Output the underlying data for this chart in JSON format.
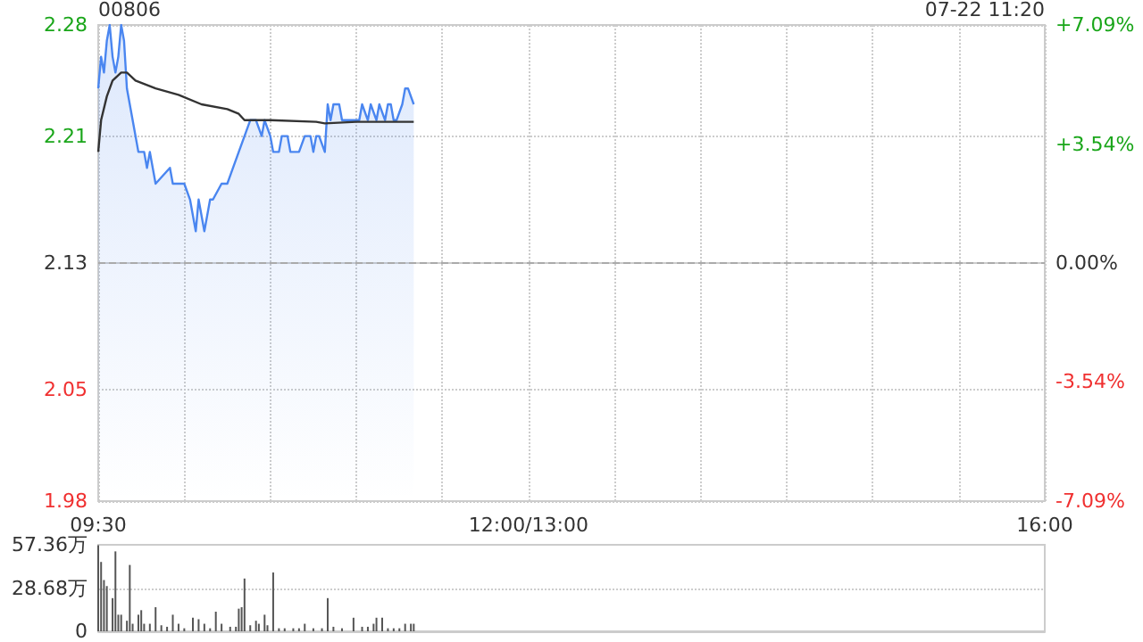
{
  "chart_data": [
    {
      "type": "line",
      "title": "00806",
      "annotations": [
        "07-22 11:20"
      ],
      "categories": [
        "09:30",
        null,
        null,
        null,
        null,
        null,
        null,
        null,
        null,
        null,
        null,
        null,
        null,
        null,
        null,
        null,
        null,
        null,
        null,
        null,
        null,
        null,
        null,
        null,
        null,
        null,
        null,
        null,
        null,
        null,
        null,
        null,
        null,
        null,
        null,
        null,
        null,
        null,
        null,
        null,
        null,
        null,
        null,
        null,
        null,
        null,
        null,
        null,
        null,
        null,
        null,
        null,
        null,
        null,
        null,
        null,
        null,
        null,
        null,
        null,
        null,
        null,
        null,
        null,
        null,
        null,
        null,
        null,
        null,
        null,
        null,
        null,
        null,
        null,
        null,
        null,
        null,
        null,
        null,
        null,
        null,
        null,
        null,
        null,
        null,
        null,
        null,
        null,
        null,
        null,
        null,
        null,
        null,
        null,
        null,
        null,
        null,
        null,
        null,
        null,
        null,
        null,
        null,
        null,
        null,
        null,
        null,
        null,
        null,
        null,
        null,
        null,
        null,
        null,
        null,
        null,
        null,
        null,
        null,
        null,
        null,
        null,
        null,
        null,
        null,
        null,
        null,
        null,
        null,
        null,
        null,
        null,
        null,
        null,
        null,
        null,
        null,
        null,
        null,
        null,
        null,
        null,
        null,
        null,
        null,
        null,
        null,
        null,
        null,
        null,
        "12:00/13:00",
        null,
        null,
        null,
        null,
        null,
        null,
        null,
        null,
        null,
        null,
        null,
        null,
        null,
        null,
        null,
        null,
        null,
        null,
        null,
        null,
        null,
        null,
        null,
        null,
        null,
        null,
        null,
        null,
        null,
        null,
        null,
        null,
        null,
        null,
        null,
        null,
        null,
        null,
        null,
        null,
        null,
        null,
        null,
        null,
        null,
        null,
        null,
        null,
        null,
        null,
        null,
        null,
        null,
        null,
        null,
        null,
        null,
        null,
        null,
        null,
        null,
        null,
        null,
        null,
        null,
        null,
        null,
        null,
        null,
        null,
        null,
        null,
        null,
        null,
        null,
        null,
        null,
        null,
        null,
        null,
        null,
        null,
        null,
        null,
        null,
        null,
        null,
        null,
        null,
        null,
        null,
        null,
        null,
        null,
        null,
        null,
        null,
        null,
        null,
        null,
        null,
        null,
        null,
        null,
        null,
        null,
        null,
        null,
        null,
        null,
        null,
        null,
        null,
        null,
        null,
        null,
        null,
        null,
        null,
        null,
        null,
        null,
        null,
        null,
        null,
        null,
        null,
        null,
        null,
        null,
        null,
        null,
        null,
        null,
        null,
        null,
        null,
        null,
        null,
        null,
        null,
        null,
        null,
        null,
        null,
        null,
        null,
        null,
        null,
        null,
        null,
        null,
        null,
        null,
        null,
        null,
        null,
        null,
        null,
        null,
        null,
        null,
        null,
        null,
        null,
        null,
        null,
        null,
        null,
        null,
        null,
        null,
        null,
        null,
        null,
        null,
        null,
        null,
        null,
        "16:00"
      ],
      "ylim": [
        1.98,
        2.28
      ],
      "yticks": [
        1.98,
        2.05,
        2.13,
        2.21,
        2.28
      ],
      "y2lim": [
        -7.09,
        7.09
      ],
      "y2ticks": [
        {
          "value": -7.09,
          "label": "-7.09%"
        },
        {
          "value": -3.54,
          "label": "-3.54%"
        },
        {
          "value": 0,
          "label": "0.00%"
        },
        {
          "value": 3.54,
          "label": "+3.54%"
        },
        {
          "value": 7.09,
          "label": "+7.09%"
        }
      ],
      "grid": true,
      "ref_lines": [
        {
          "axis": "y",
          "value": 2.13,
          "color": "#aaaaaa",
          "line_style": "dashed"
        }
      ],
      "series": [
        {
          "type": "area",
          "color": "#4a86f0",
          "values": [
            2.24,
            2.26,
            2.25,
            2.27,
            2.28,
            2.26,
            2.25,
            2.26,
            2.28,
            2.27,
            2.24,
            null,
            2.22,
            null,
            2.2,
            null,
            2.2,
            2.19,
            2.2,
            2.19,
            2.18,
            null,
            null,
            null,
            null,
            2.19,
            2.18,
            null,
            null,
            null,
            2.18,
            null,
            2.17,
            null,
            2.15,
            2.17,
            null,
            2.15,
            null,
            2.17,
            2.17,
            null,
            null,
            2.18,
            null,
            2.18,
            null,
            2.19,
            null,
            2.2,
            null,
            2.21,
            null,
            2.22,
            null,
            2.22,
            null,
            2.21,
            2.22,
            null,
            2.21,
            2.2,
            null,
            2.2,
            2.21,
            null,
            2.21,
            2.2,
            null,
            null,
            2.2,
            null,
            2.21,
            null,
            2.21,
            2.2,
            2.21,
            2.21,
            null,
            2.2,
            2.23,
            2.22,
            2.23,
            null,
            2.23,
            2.22,
            null,
            null,
            null,
            null,
            null,
            2.22,
            2.23,
            null,
            2.22,
            2.23,
            null,
            2.22,
            2.23,
            null,
            2.22,
            2.23,
            2.23,
            2.22,
            2.22,
            null,
            2.23,
            2.24,
            2.24,
            null,
            2.23,
            null,
            null,
            null,
            null,
            null,
            null,
            null,
            null,
            null,
            null,
            null,
            null,
            null,
            null,
            null,
            null,
            null,
            null,
            null,
            null,
            null,
            null,
            null,
            null,
            null,
            null,
            null,
            null,
            null,
            null,
            null,
            null,
            null,
            null,
            null,
            null,
            null,
            null,
            null,
            null,
            null,
            null,
            null,
            null,
            null,
            null,
            null,
            null,
            null,
            null,
            null,
            null,
            null,
            null,
            null,
            null,
            null,
            null,
            null,
            null,
            null,
            null,
            null,
            null,
            null,
            null,
            null,
            null,
            null,
            null,
            null,
            null,
            null,
            null,
            null,
            null,
            null,
            null,
            null,
            null,
            null,
            null,
            null,
            null,
            null,
            null,
            null,
            null,
            null,
            null,
            null,
            null,
            null,
            null,
            null,
            null,
            null,
            null,
            null,
            null,
            null,
            null,
            null,
            null,
            null,
            null,
            null,
            null,
            null,
            null,
            null,
            null,
            null,
            null,
            null,
            null,
            null,
            null,
            null,
            null,
            null,
            null,
            null,
            null,
            null,
            null,
            null,
            null,
            null,
            null,
            null,
            null,
            null,
            null,
            null,
            null,
            null,
            null,
            null,
            null,
            null,
            null,
            null,
            null,
            null,
            null,
            null,
            null,
            null,
            null,
            null,
            null,
            null,
            null,
            null,
            null,
            null,
            null,
            null,
            null,
            null,
            null,
            null,
            null,
            null,
            null,
            null,
            null,
            null,
            null,
            null,
            null,
            null,
            null,
            null,
            null,
            null,
            null,
            null,
            null,
            null,
            null,
            null,
            null,
            null,
            null,
            null,
            null,
            null,
            null,
            null,
            null,
            null,
            null,
            null,
            null,
            null,
            null,
            null,
            null,
            null,
            null,
            null,
            null,
            null,
            null,
            null,
            null,
            null,
            null,
            null,
            null,
            null,
            null,
            null,
            null,
            null,
            null,
            null,
            null
          ]
        },
        {
          "color": "#333333",
          "values": [
            2.2,
            2.22,
            null,
            2.235,
            null,
            2.245,
            null,
            null,
            2.25,
            null,
            2.25,
            null,
            null,
            2.245,
            null,
            null,
            null,
            null,
            null,
            null,
            2.24,
            null,
            null,
            null,
            null,
            null,
            null,
            null,
            2.236,
            null,
            null,
            null,
            null,
            null,
            null,
            null,
            2.23,
            null,
            null,
            null,
            null,
            null,
            null,
            null,
            null,
            2.227,
            null,
            null,
            null,
            2.224,
            null,
            2.22,
            null,
            null,
            null,
            null,
            null,
            null,
            null,
            null,
            2.22,
            null,
            null,
            null,
            null,
            null,
            null,
            null,
            null,
            null,
            null,
            null,
            null,
            null,
            null,
            null,
            2.219,
            null,
            null,
            2.218,
            null,
            null,
            null,
            null,
            null,
            null,
            null,
            null,
            null,
            null,
            2.219,
            null,
            null,
            null,
            null,
            null,
            null,
            null,
            null,
            null,
            null,
            null,
            null,
            null,
            null,
            null,
            null,
            null,
            null,
            null,
            2.219,
            null,
            null,
            null,
            null,
            null,
            null,
            null,
            null,
            null,
            null,
            null,
            null,
            null,
            null,
            null,
            null,
            null,
            null,
            null,
            null,
            null,
            null,
            null,
            null,
            null,
            null,
            null,
            null,
            null,
            null,
            null,
            null,
            null,
            null,
            null,
            null,
            null,
            null,
            null,
            null,
            null,
            null,
            null,
            null,
            null,
            null,
            null,
            null,
            null,
            null,
            null,
            null,
            null,
            null,
            null,
            null,
            null,
            null,
            null,
            null,
            null,
            null,
            null,
            null,
            null,
            null,
            null,
            null,
            null,
            null,
            null,
            null,
            null,
            null,
            null,
            null,
            null,
            null,
            null,
            null,
            null,
            null,
            null,
            null,
            null,
            null,
            null,
            null,
            null,
            null,
            null,
            null,
            null,
            null,
            null,
            null,
            null,
            null,
            null,
            null,
            null,
            null,
            null,
            null,
            null,
            null,
            null,
            null,
            null,
            null,
            null,
            null,
            null,
            null,
            null,
            null,
            null,
            null,
            null,
            null,
            null,
            null,
            null,
            null,
            null,
            null,
            null,
            null,
            null,
            null,
            null,
            null,
            null,
            null,
            null,
            null,
            null,
            null,
            null,
            null,
            null,
            null,
            null,
            null,
            null,
            null,
            null,
            null,
            null,
            null,
            null,
            null,
            null,
            null,
            null,
            null,
            null,
            null,
            null,
            null,
            null,
            null,
            null,
            null,
            null,
            null,
            null,
            null,
            null,
            null,
            null,
            null,
            null,
            null,
            null,
            null,
            null,
            null,
            null,
            null,
            null,
            null,
            null,
            null,
            null,
            null,
            null,
            null,
            null,
            null,
            null,
            null,
            null,
            null,
            null,
            null,
            null,
            null,
            null,
            null,
            null,
            null,
            null,
            null,
            null,
            null,
            null,
            null,
            null,
            null,
            null,
            null,
            null,
            null,
            null,
            null,
            null,
            null,
            null,
            null
          ]
        }
      ]
    },
    {
      "type": "bar",
      "color": "#555555",
      "ylim": [
        0,
        57.36
      ],
      "yticks": [
        0,
        {
          "value": 28.68,
          "label": "28.68万"
        },
        {
          "value": 57.36,
          "label": "57.36万"
        }
      ],
      "grid": "y",
      "tick_labels": "y",
      "categories": [
        null,
        null,
        null,
        null,
        null,
        null,
        null,
        null,
        null,
        null,
        null,
        null,
        null,
        null,
        null,
        null,
        null,
        null,
        null,
        null,
        null,
        null,
        null,
        null,
        null,
        null,
        null,
        null,
        null,
        null,
        null,
        null,
        null,
        null,
        null,
        null,
        null,
        null,
        null,
        null,
        null,
        null,
        null,
        null,
        null,
        null,
        null,
        null,
        null,
        null,
        null,
        null,
        null,
        null,
        null,
        null,
        null,
        null,
        null,
        null,
        null,
        null,
        null,
        null,
        null,
        null,
        null,
        null,
        null,
        null,
        null,
        null,
        null,
        null,
        null,
        null,
        null,
        null,
        null,
        null,
        null,
        null,
        null,
        null,
        null,
        null,
        null,
        null,
        null,
        null,
        null,
        null,
        null,
        null,
        null,
        null,
        null,
        null,
        null,
        null,
        null,
        null,
        null,
        null,
        null,
        null,
        null,
        null,
        null,
        null,
        null,
        null,
        null,
        null,
        null,
        null,
        null,
        null,
        null,
        null,
        null,
        null,
        null,
        null,
        null,
        null,
        null,
        null,
        null,
        null,
        null,
        null,
        null,
        null,
        null,
        null,
        null,
        null,
        null,
        null,
        null,
        null,
        null,
        null,
        null,
        null,
        null,
        null,
        null,
        null,
        null,
        null,
        null,
        null,
        null,
        null,
        null,
        null,
        null,
        null,
        null,
        null,
        null,
        null,
        null,
        null,
        null,
        null,
        null,
        null,
        null,
        null,
        null,
        null,
        null,
        null,
        null,
        null,
        null,
        null,
        null,
        null,
        null,
        null,
        null,
        null,
        null,
        null,
        null,
        null,
        null,
        null,
        null,
        null,
        null,
        null,
        null,
        null,
        null,
        null,
        null,
        null,
        null,
        null,
        null,
        null,
        null,
        null,
        null,
        null,
        null,
        null,
        null,
        null,
        null,
        null,
        null,
        null,
        null,
        null,
        null,
        null,
        null,
        null,
        null,
        null,
        null,
        null,
        null,
        null,
        null,
        null,
        null,
        null,
        null,
        null,
        null,
        null,
        null,
        null,
        null,
        null,
        null,
        null,
        null,
        null,
        null,
        null,
        null,
        null,
        null,
        null,
        null,
        null,
        null,
        null,
        null,
        null,
        null,
        null,
        null,
        null,
        null,
        null,
        null,
        null,
        null,
        null,
        null,
        null,
        null,
        null,
        null,
        null,
        null,
        null,
        null,
        null,
        null,
        null,
        null,
        null,
        null,
        null,
        null,
        null,
        null,
        null,
        null,
        null,
        null,
        null,
        null,
        null,
        null,
        null,
        null,
        null,
        null,
        null,
        null,
        null,
        null,
        null,
        null,
        null,
        null,
        null,
        null,
        null,
        null,
        null,
        null,
        null,
        null,
        null,
        null,
        null,
        null,
        null,
        null,
        null,
        null,
        null,
        null,
        null,
        null,
        null,
        null,
        null,
        null
      ],
      "values": [
        57,
        46,
        34,
        30,
        null,
        22,
        53,
        11,
        11,
        null,
        7,
        44,
        5,
        null,
        11,
        14,
        5,
        null,
        5,
        null,
        16,
        null,
        4,
        null,
        3,
        null,
        11,
        null,
        5,
        null,
        2,
        null,
        null,
        9,
        null,
        8,
        null,
        5,
        null,
        2,
        null,
        13,
        null,
        5,
        null,
        null,
        3,
        null,
        3,
        15,
        16,
        35,
        null,
        4,
        null,
        7,
        5,
        null,
        11,
        4,
        null,
        39,
        null,
        2,
        null,
        2,
        null,
        null,
        2,
        null,
        2,
        null,
        5,
        null,
        null,
        2,
        null,
        null,
        2,
        null,
        22,
        null,
        3,
        null,
        null,
        2,
        null,
        null,
        null,
        9,
        null,
        null,
        3,
        null,
        3,
        null,
        5,
        9,
        null,
        9,
        null,
        2,
        null,
        2,
        null,
        2,
        null,
        5,
        null,
        5,
        5,
        null,
        null,
        null,
        null,
        null,
        null,
        null,
        null,
        null,
        null,
        null,
        null,
        null,
        null,
        null,
        null,
        null,
        null,
        null,
        null,
        null,
        null,
        null,
        null,
        null,
        null,
        null,
        null,
        null,
        null,
        null,
        null,
        null,
        null,
        null,
        null,
        null,
        null,
        null,
        null,
        null,
        null,
        null,
        null,
        null,
        null,
        null,
        null,
        null,
        null,
        null,
        null,
        null,
        null,
        null,
        null,
        null,
        null,
        null,
        null,
        null,
        null,
        null,
        null,
        null,
        null,
        null,
        null,
        null,
        null,
        null,
        null,
        null,
        null,
        null,
        null,
        null,
        null,
        null,
        null,
        null,
        null,
        null,
        null,
        null,
        null,
        null,
        null,
        null,
        null,
        null,
        null,
        null,
        null,
        null,
        null,
        null,
        null,
        null,
        null,
        null,
        null,
        null,
        null,
        null,
        null,
        null,
        null,
        null,
        null,
        null,
        null,
        null,
        null,
        null,
        null,
        null,
        null,
        null,
        null,
        null,
        null,
        null,
        null,
        null,
        null,
        null,
        null,
        null,
        null,
        null,
        null,
        null,
        null,
        null,
        null,
        null,
        null,
        null,
        null,
        null,
        null,
        null,
        null,
        null,
        null,
        null,
        null,
        null,
        null,
        null,
        null,
        null,
        null,
        null,
        null,
        null,
        null,
        null,
        null,
        null,
        null,
        null,
        null,
        null,
        null,
        null,
        null,
        null,
        null,
        null,
        null,
        null,
        null,
        null,
        null,
        null,
        null,
        null,
        null,
        null,
        null,
        null,
        null,
        null,
        null,
        null,
        null,
        null,
        null,
        null,
        null,
        null,
        null,
        null,
        null,
        null,
        null,
        null,
        null,
        null,
        null,
        null,
        null,
        null,
        null,
        null,
        null,
        null,
        null,
        null,
        null,
        null,
        null,
        null,
        null,
        null,
        null,
        null,
        null
      ]
    }
  ]
}
